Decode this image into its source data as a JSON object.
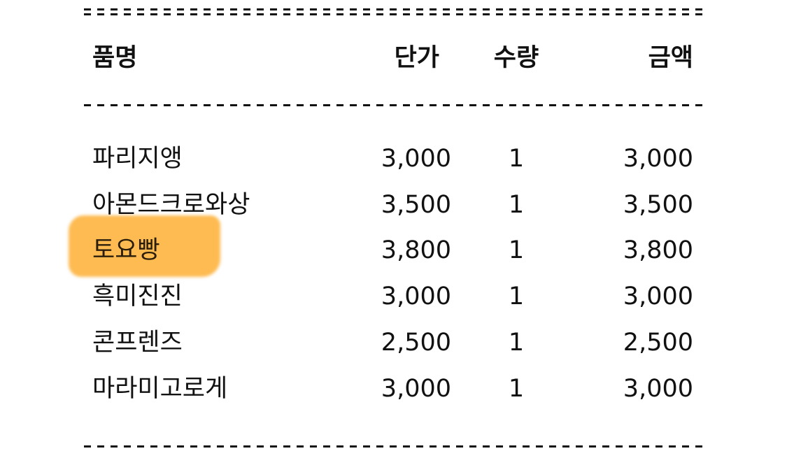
{
  "header": {
    "name": "품명",
    "price": "단가",
    "qty": "수량",
    "amount": "금액"
  },
  "highlight_color": "#fdb440",
  "items": [
    {
      "name": "파리지앵",
      "price": "3,000",
      "qty": "1",
      "amount": "3,000"
    },
    {
      "name": "아몬드크로와상",
      "price": "3,500",
      "qty": "1",
      "amount": "3,500"
    },
    {
      "name": "토요빵",
      "price": "3,800",
      "qty": "1",
      "amount": "3,800",
      "highlighted": true
    },
    {
      "name": "흑미진진",
      "price": "3,000",
      "qty": "1",
      "amount": "3,000"
    },
    {
      "name": "콘프렌즈",
      "price": "2,500",
      "qty": "1",
      "amount": "2,500"
    },
    {
      "name": "마라미고로게",
      "price": "3,000",
      "qty": "1",
      "amount": "3,000"
    }
  ]
}
